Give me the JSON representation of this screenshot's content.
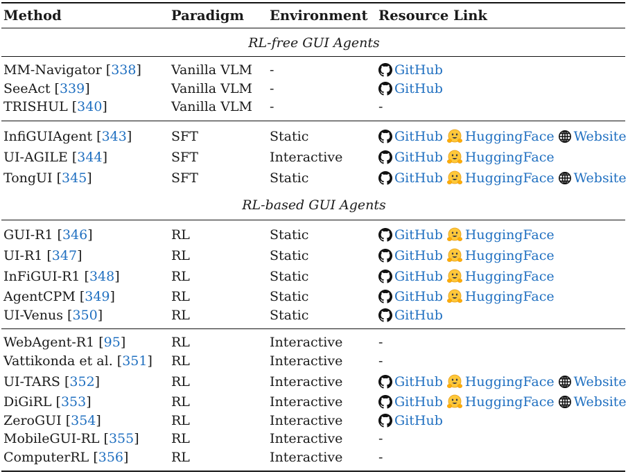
{
  "header": {
    "method": "Method",
    "paradigm": "Paradigm",
    "environment": "Environment",
    "resource": "Resource Link"
  },
  "link_labels": {
    "github": "GitHub",
    "huggingface": "HuggingFace",
    "website": "Website"
  },
  "colors": {
    "link": "#1f6fc0",
    "hf_yellow": "#ffc83a"
  },
  "sections": [
    {
      "title": "RL-free GUI Agents",
      "groups": [
        [
          {
            "method": "MM-Navigator",
            "ref": "338",
            "paradigm": "Vanilla VLM",
            "environment": "-",
            "links": [
              "github"
            ]
          },
          {
            "method": "SeeAct",
            "ref": "339",
            "paradigm": "Vanilla VLM",
            "environment": "-",
            "links": [
              "github"
            ]
          },
          {
            "method": "TRISHUL",
            "ref": "340",
            "paradigm": "Vanilla VLM",
            "environment": "-",
            "links": []
          }
        ],
        [
          {
            "method": "InfiGUIAgent",
            "ref": "343",
            "paradigm": "SFT",
            "environment": "Static",
            "links": [
              "github",
              "huggingface",
              "website"
            ]
          },
          {
            "method": "UI-AGILE",
            "ref": "344",
            "paradigm": "SFT",
            "environment": "Interactive",
            "links": [
              "github",
              "huggingface"
            ]
          },
          {
            "method": "TongUI",
            "ref": "345",
            "paradigm": "SFT",
            "environment": "Static",
            "links": [
              "github",
              "huggingface",
              "website"
            ]
          }
        ]
      ]
    },
    {
      "title": "RL-based GUI Agents",
      "groups": [
        [
          {
            "method": "GUI-R1",
            "ref": "346",
            "paradigm": "RL",
            "environment": "Static",
            "links": [
              "github",
              "huggingface"
            ]
          },
          {
            "method": "UI-R1",
            "ref": "347",
            "paradigm": "RL",
            "environment": "Static",
            "links": [
              "github",
              "huggingface"
            ]
          },
          {
            "method": "InFiGUI-R1",
            "ref": "348",
            "paradigm": "RL",
            "environment": "Static",
            "links": [
              "github",
              "huggingface"
            ]
          },
          {
            "method": "AgentCPM",
            "ref": "349",
            "paradigm": "RL",
            "environment": "Static",
            "links": [
              "github",
              "huggingface"
            ]
          },
          {
            "method": "UI-Venus",
            "ref": "350",
            "paradigm": "RL",
            "environment": "Static",
            "links": [
              "github"
            ]
          }
        ],
        [
          {
            "method": "WebAgent-R1",
            "ref": "95",
            "paradigm": "RL",
            "environment": "Interactive",
            "links": []
          },
          {
            "method": "Vattikonda et al.",
            "ref": "351",
            "paradigm": "RL",
            "environment": "Interactive",
            "links": []
          },
          {
            "method": "UI-TARS",
            "ref": "352",
            "paradigm": "RL",
            "environment": "Interactive",
            "links": [
              "github",
              "huggingface",
              "website"
            ]
          },
          {
            "method": "DiGiRL",
            "ref": "353",
            "paradigm": "RL",
            "environment": "Interactive",
            "links": [
              "github",
              "huggingface",
              "website"
            ]
          },
          {
            "method": "ZeroGUI",
            "ref": "354",
            "paradigm": "RL",
            "environment": "Interactive",
            "links": [
              "github"
            ]
          },
          {
            "method": "MobileGUI-RL",
            "ref": "355",
            "paradigm": "RL",
            "environment": "Interactive",
            "links": []
          },
          {
            "method": "ComputerRL",
            "ref": "356",
            "paradigm": "RL",
            "environment": "Interactive",
            "links": []
          }
        ]
      ]
    }
  ]
}
